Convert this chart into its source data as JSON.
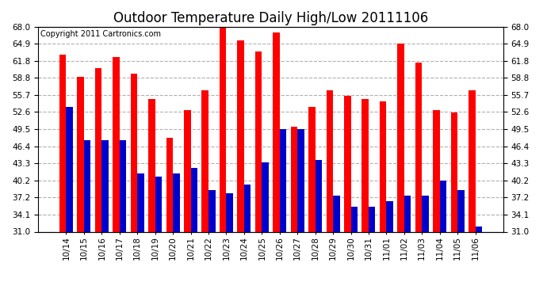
{
  "title": "Outdoor Temperature Daily High/Low 20111106",
  "copyright": "Copyright 2011 Cartronics.com",
  "dates": [
    "10/14",
    "10/15",
    "10/16",
    "10/17",
    "10/18",
    "10/19",
    "10/20",
    "10/21",
    "10/22",
    "10/23",
    "10/24",
    "10/25",
    "10/26",
    "10/27",
    "10/28",
    "10/29",
    "10/30",
    "10/31",
    "11/01",
    "11/02",
    "11/03",
    "11/04",
    "11/05",
    "11/06"
  ],
  "highs": [
    63.0,
    59.0,
    60.5,
    62.5,
    59.5,
    55.0,
    48.0,
    53.0,
    56.5,
    68.0,
    65.5,
    63.5,
    67.0,
    50.0,
    53.5,
    56.5,
    55.5,
    55.0,
    54.5,
    65.0,
    61.5,
    53.0,
    52.5,
    56.5
  ],
  "lows": [
    53.5,
    47.5,
    47.5,
    47.5,
    41.5,
    41.0,
    41.5,
    42.5,
    38.5,
    38.0,
    39.5,
    43.5,
    49.5,
    49.5,
    44.0,
    37.5,
    35.5,
    35.5,
    36.5,
    37.5,
    37.5,
    40.2,
    38.5,
    32.0
  ],
  "high_color": "#ff0000",
  "low_color": "#0000cc",
  "bg_color": "#ffffff",
  "plot_bg_color": "#ffffff",
  "grid_color": "#b0b0b0",
  "ylim_min": 31.0,
  "ylim_max": 68.0,
  "yticks": [
    31.0,
    34.1,
    37.2,
    40.2,
    43.3,
    46.4,
    49.5,
    52.6,
    55.7,
    58.8,
    61.8,
    64.9,
    68.0
  ],
  "title_fontsize": 12,
  "copyright_fontsize": 7,
  "tick_fontsize": 7.5,
  "bar_width": 0.38,
  "dpi": 100,
  "fig_width": 6.9,
  "fig_height": 3.75
}
